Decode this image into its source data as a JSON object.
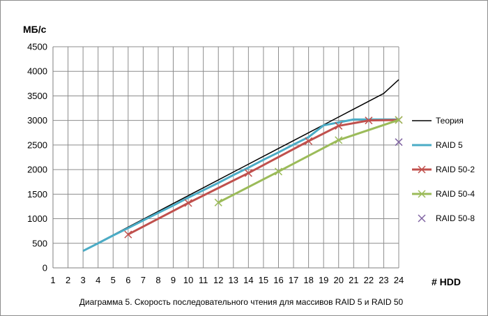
{
  "chart_data": {
    "type": "line",
    "title": "Диаграмма 5. Скорость последовательного чтения для массивов RAID 5 и RAID 50",
    "ylabel": "МБ/с",
    "xlabel": "# HDD",
    "xlim": [
      1,
      24
    ],
    "ylim": [
      0,
      4500
    ],
    "x_ticks": [
      1,
      2,
      3,
      4,
      5,
      6,
      7,
      8,
      9,
      10,
      11,
      12,
      13,
      14,
      15,
      16,
      17,
      18,
      19,
      20,
      21,
      22,
      23,
      24
    ],
    "y_ticks": [
      0,
      500,
      1000,
      1500,
      2000,
      2500,
      3000,
      3500,
      4000,
      4500
    ],
    "grid": true,
    "legend_position": "right",
    "series": [
      {
        "name": "Теория",
        "color": "#000000",
        "marker": "none",
        "points": [
          [
            3,
            345
          ],
          [
            4,
            510
          ],
          [
            5,
            670
          ],
          [
            6,
            830
          ],
          [
            7,
            990
          ],
          [
            8,
            1150
          ],
          [
            9,
            1310
          ],
          [
            10,
            1470
          ],
          [
            11,
            1630
          ],
          [
            12,
            1790
          ],
          [
            13,
            1950
          ],
          [
            14,
            2110
          ],
          [
            15,
            2270
          ],
          [
            16,
            2430
          ],
          [
            17,
            2590
          ],
          [
            18,
            2750
          ],
          [
            19,
            2910
          ],
          [
            20,
            3070
          ],
          [
            21,
            3230
          ],
          [
            22,
            3390
          ],
          [
            23,
            3550
          ],
          [
            24,
            3830
          ]
        ]
      },
      {
        "name": "RAID 5",
        "color": "#4bacc6",
        "marker": "none",
        "points": [
          [
            3,
            345
          ],
          [
            4,
            500
          ],
          [
            5,
            660
          ],
          [
            6,
            810
          ],
          [
            7,
            965
          ],
          [
            8,
            1120
          ],
          [
            9,
            1270
          ],
          [
            10,
            1430
          ],
          [
            11,
            1580
          ],
          [
            12,
            1730
          ],
          [
            13,
            1890
          ],
          [
            14,
            2040
          ],
          [
            15,
            2200
          ],
          [
            16,
            2350
          ],
          [
            17,
            2510
          ],
          [
            18,
            2660
          ],
          [
            19,
            2900
          ],
          [
            20,
            2960
          ],
          [
            21,
            3020
          ],
          [
            22,
            3020
          ],
          [
            23,
            3020
          ],
          [
            24,
            3020
          ]
        ]
      },
      {
        "name": "RAID 50-2",
        "color": "#c0504d",
        "marker": "x",
        "points": [
          [
            6,
            680
          ],
          [
            10,
            1320
          ],
          [
            14,
            1930
          ],
          [
            18,
            2580
          ],
          [
            20,
            2890
          ],
          [
            22,
            3000
          ],
          [
            24,
            3010
          ]
        ]
      },
      {
        "name": "RAID 50-4",
        "color": "#9bbb59",
        "marker": "x",
        "points": [
          [
            12,
            1330
          ],
          [
            16,
            1960
          ],
          [
            20,
            2600
          ],
          [
            24,
            3010
          ]
        ]
      },
      {
        "name": "RAID 50-8",
        "color": "#8064a2",
        "marker": "x",
        "line": false,
        "points": [
          [
            24,
            2560
          ]
        ]
      }
    ]
  }
}
